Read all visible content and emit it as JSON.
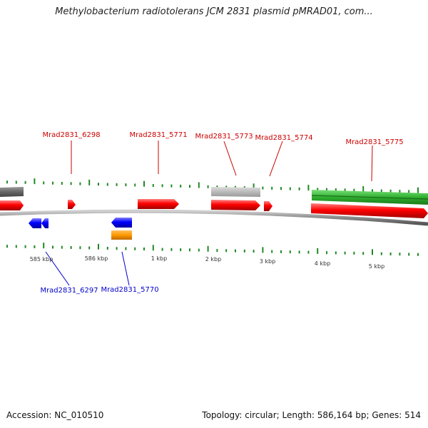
{
  "title": "Methylobacterium radiotolerans JCM 2831 plasmid pMRAD01, com...",
  "accession": "Accession: NC_010510",
  "summary": "Topology: circular; Length: 586,164 bp; Genes: 514",
  "scale_labels": [
    "585 kbp",
    "586 kbp",
    "1 kbp",
    "2 kbp",
    "3 kbp",
    "4 kbp",
    "5 kbp"
  ],
  "genes_forward": [
    "Mrad2831_6298",
    "Mrad2831_5771",
    "Mrad2831_5773",
    "Mrad2831_5774",
    "Mrad2831_5775"
  ],
  "genes_reverse": [
    "Mrad2831_6297",
    "Mrad2831_5770"
  ],
  "colors": {
    "forward_label": "#cc0000",
    "reverse_label": "#0000cc",
    "cds": "#ff0000",
    "cds_reverse": "#0000ff",
    "rrna": "#ff9900",
    "orf": "#33bb33",
    "gc_skew": "#ffffff",
    "tick": "#228822",
    "backbone": "#888888"
  }
}
